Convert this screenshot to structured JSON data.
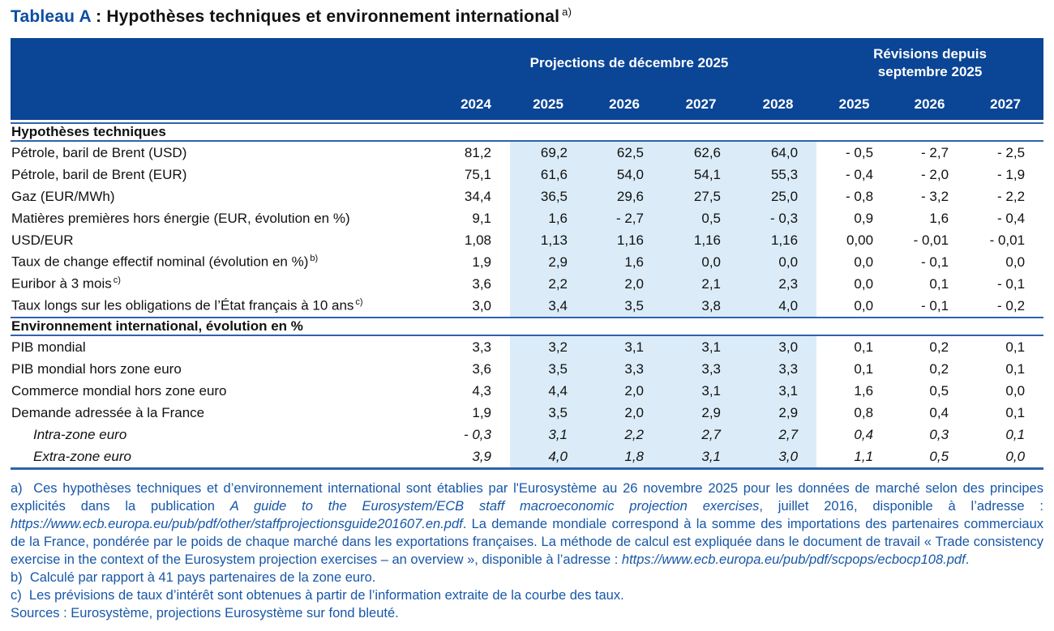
{
  "title": {
    "prefix": "Tableau A",
    "separator": " : ",
    "text": "Hypothèses techniques et environnement international",
    "note_ref": "a)"
  },
  "colors": {
    "header_navy": "#0b4596",
    "projection_shade_blue": "#dbecf8",
    "rule_blue": "#2e63ae",
    "footnote_blue": "#1757a8",
    "title_blue": "#0c4da2"
  },
  "table": {
    "header": {
      "projections_label": "Projections de décembre 2025",
      "revisions_label": "Révisions depuis septembre 2025",
      "years": [
        "2024",
        "2025",
        "2026",
        "2027",
        "2028",
        "2025",
        "2026",
        "2027"
      ]
    },
    "sections": [
      {
        "title": "Hypothèses techniques",
        "rows": [
          {
            "label": "Pétrole, baril de Brent (USD)",
            "sup": "",
            "italic": false,
            "values": [
              "81,2",
              "69,2",
              "62,5",
              "62,6",
              "64,0",
              "- 0,5",
              "- 2,7",
              "- 2,5"
            ]
          },
          {
            "label": "Pétrole, baril de Brent (EUR)",
            "sup": "",
            "italic": false,
            "values": [
              "75,1",
              "61,6",
              "54,0",
              "54,1",
              "55,3",
              "- 0,4",
              "- 2,0",
              "- 1,9"
            ]
          },
          {
            "label": "Gaz (EUR/MWh)",
            "sup": "",
            "italic": false,
            "values": [
              "34,4",
              "36,5",
              "29,6",
              "27,5",
              "25,0",
              "- 0,8",
              "- 3,2",
              "- 2,2"
            ]
          },
          {
            "label": "Matières premières hors énergie (EUR, évolution en %)",
            "sup": "",
            "italic": false,
            "values": [
              "9,1",
              "1,6",
              "- 2,7",
              "0,5",
              "- 0,3",
              "0,9",
              "1,6",
              "- 0,4"
            ]
          },
          {
            "label": "USD/EUR",
            "sup": "",
            "italic": false,
            "values": [
              "1,08",
              "1,13",
              "1,16",
              "1,16",
              "1,16",
              "0,00",
              "- 0,01",
              "- 0,01"
            ]
          },
          {
            "label": "Taux de change effectif nominal (évolution en %)",
            "sup": "b)",
            "italic": false,
            "values": [
              "1,9",
              "2,9",
              "1,6",
              "0,0",
              "0,0",
              "0,0",
              "- 0,1",
              "0,0"
            ]
          },
          {
            "label": "Euribor à 3 mois",
            "sup": "c)",
            "italic": false,
            "values": [
              "3,6",
              "2,2",
              "2,0",
              "2,1",
              "2,3",
              "0,0",
              "0,1",
              "- 0,1"
            ]
          },
          {
            "label": "Taux longs sur les obligations de l’État français à 10 ans",
            "sup": "c)",
            "italic": false,
            "values": [
              "3,0",
              "3,4",
              "3,5",
              "3,8",
              "4,0",
              "0,0",
              "- 0,1",
              "- 0,2"
            ]
          }
        ]
      },
      {
        "title": "Environnement international, évolution en %",
        "rows": [
          {
            "label": "PIB mondial",
            "sup": "",
            "italic": false,
            "values": [
              "3,3",
              "3,2",
              "3,1",
              "3,1",
              "3,0",
              "0,1",
              "0,2",
              "0,1"
            ]
          },
          {
            "label": "PIB mondial hors zone euro",
            "sup": "",
            "italic": false,
            "values": [
              "3,6",
              "3,5",
              "3,3",
              "3,3",
              "3,3",
              "0,1",
              "0,2",
              "0,1"
            ]
          },
          {
            "label": "Commerce mondial hors zone euro",
            "sup": "",
            "italic": false,
            "values": [
              "4,3",
              "4,4",
              "2,0",
              "3,1",
              "3,1",
              "1,6",
              "0,5",
              "0,0"
            ]
          },
          {
            "label": "Demande adressée à la France",
            "sup": "",
            "italic": false,
            "values": [
              "1,9",
              "3,5",
              "2,0",
              "2,9",
              "2,9",
              "0,8",
              "0,4",
              "0,1"
            ]
          },
          {
            "label": "Intra-zone euro",
            "sup": "",
            "italic": true,
            "values": [
              "- 0,3",
              "3,1",
              "2,2",
              "2,7",
              "2,7",
              "0,4",
              "0,3",
              "0,1"
            ]
          },
          {
            "label": "Extra-zone euro",
            "sup": "",
            "italic": true,
            "values": [
              "3,9",
              "4,0",
              "1,8",
              "3,1",
              "3,0",
              "1,1",
              "0,5",
              "0,0"
            ]
          }
        ]
      }
    ]
  },
  "footnotes": {
    "a_segments": [
      {
        "text": "a)  Ces hypothèses techniques et d’environnement international sont établies par l'Eurosystème au 26 novembre 2025 pour les données de marché selon des principes explicités dans la publication ",
        "italic": false
      },
      {
        "text": "A guide to the Eurosystem/ECB staff macroeconomic projection exercises",
        "italic": true
      },
      {
        "text": ", juillet 2016, disponible à l’adresse : ",
        "italic": false
      },
      {
        "text": "https://www.ecb.europa.eu/pub/pdf/other/staffprojectionsguide201607.en.pdf",
        "italic": true
      },
      {
        "text": ". La demande mondiale correspond à la somme des importations des partenaires commerciaux de la France, pondérée par le poids de chaque marché dans les exportations françaises. La méthode de calcul est expliquée dans le document de travail « Trade consistency exercise in the context of the Eurosystem projection exercises – an overview », disponible à l’adresse : ",
        "italic": false
      },
      {
        "text": "https://www.ecb.europa.eu/pub/pdf/scpops/ecbocp108.pdf",
        "italic": true
      },
      {
        "text": ".",
        "italic": false
      }
    ],
    "b": "b)  Calculé par rapport à 41 pays partenaires de la zone euro.",
    "c": "c)  Les prévisions de taux d’intérêt sont obtenues à partir de l’information extraite de la courbe des taux.",
    "sources": "Sources : Eurosystème, projections Eurosystème sur fond bleuté."
  }
}
